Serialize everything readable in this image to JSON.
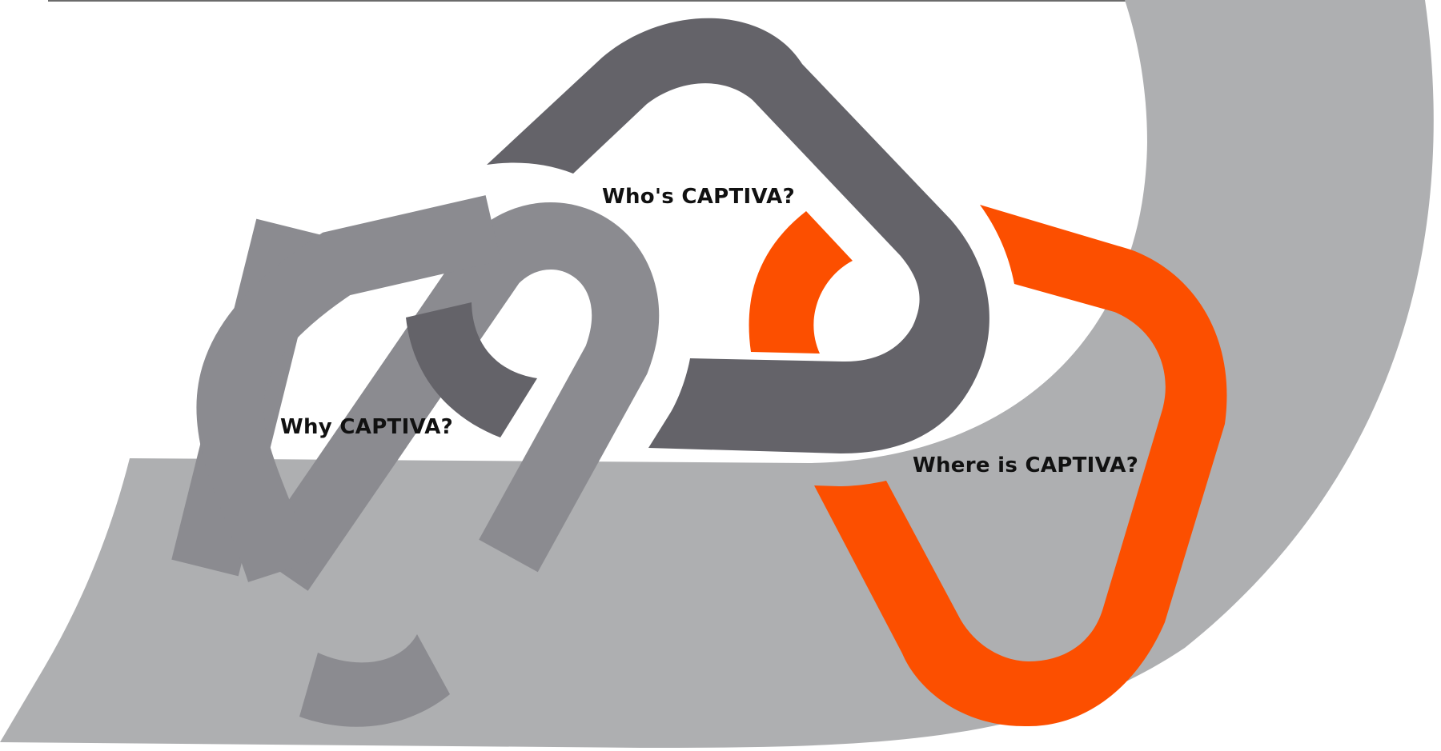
{
  "labels": {
    "why": "Why CAPTIVA?",
    "who": "Who's CAPTIVA?",
    "where": "Where is CAPTIVA?"
  },
  "colors": {
    "background": "#ffffff",
    "backdrop_gray": "#aeafb1",
    "link_mid_gray": "#8b8b90",
    "link_dark_gray": "#646369",
    "link_orange": "#fc4f00",
    "text": "#111111"
  }
}
